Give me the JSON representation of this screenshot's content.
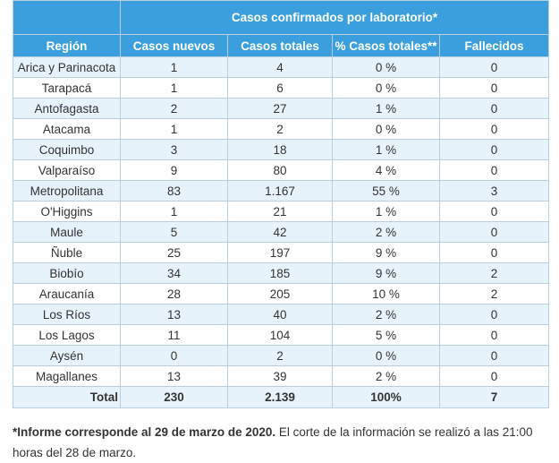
{
  "table": {
    "super_header": {
      "left": "",
      "right": "Casos confirmados por laboratorio*"
    },
    "headers": [
      "Región",
      "Casos nuevos",
      "Casos totales",
      "% Casos totales**",
      "Fallecidos"
    ],
    "rows": [
      {
        "region": "Arica y Parinacota",
        "nuevos": "1",
        "totales": "4",
        "pct": "0 %",
        "fallecidos": "0"
      },
      {
        "region": "Tarapacá",
        "nuevos": "1",
        "totales": "6",
        "pct": "0 %",
        "fallecidos": "0"
      },
      {
        "region": "Antofagasta",
        "nuevos": "2",
        "totales": "27",
        "pct": "1 %",
        "fallecidos": "0"
      },
      {
        "region": "Atacama",
        "nuevos": "1",
        "totales": "2",
        "pct": "0 %",
        "fallecidos": "0"
      },
      {
        "region": "Coquimbo",
        "nuevos": "3",
        "totales": "18",
        "pct": "1 %",
        "fallecidos": "0"
      },
      {
        "region": "Valparaíso",
        "nuevos": "9",
        "totales": "80",
        "pct": "4 %",
        "fallecidos": "0"
      },
      {
        "region": "Metropolitana",
        "nuevos": "83",
        "totales": "1.167",
        "pct": "55 %",
        "fallecidos": "3"
      },
      {
        "region": "O'Higgins",
        "nuevos": "1",
        "totales": "21",
        "pct": "1 %",
        "fallecidos": "0"
      },
      {
        "region": "Maule",
        "nuevos": "5",
        "totales": "42",
        "pct": "2 %",
        "fallecidos": "0"
      },
      {
        "region": "Ñuble",
        "nuevos": "25",
        "totales": "197",
        "pct": "9 %",
        "fallecidos": "0"
      },
      {
        "region": "Biobío",
        "nuevos": "34",
        "totales": "185",
        "pct": "9 %",
        "fallecidos": "2"
      },
      {
        "region": "Araucanía",
        "nuevos": "28",
        "totales": "205",
        "pct": "10 %",
        "fallecidos": "2"
      },
      {
        "region": "Los Ríos",
        "nuevos": "13",
        "totales": "40",
        "pct": "2 %",
        "fallecidos": "0"
      },
      {
        "region": "Los Lagos",
        "nuevos": "11",
        "totales": "104",
        "pct": "5 %",
        "fallecidos": "0"
      },
      {
        "region": "Aysén",
        "nuevos": "0",
        "totales": "2",
        "pct": "0 %",
        "fallecidos": "0"
      },
      {
        "region": "Magallanes",
        "nuevos": "13",
        "totales": "39",
        "pct": "2 %",
        "fallecidos": "0"
      }
    ],
    "total": {
      "region": "Total",
      "nuevos": "230",
      "totales": "2.139",
      "pct": "100%",
      "fallecidos": "7"
    }
  },
  "note": {
    "bold": "*Informe corresponde al 29 de marzo de 2020.",
    "rest": " El corte de la información se realizó a las 21:00 horas del 28 de marzo."
  },
  "colors": {
    "header_bg": "#3a9fdc",
    "row_alt_bg": "#e6f3fb",
    "border": "#b9cfe0"
  }
}
